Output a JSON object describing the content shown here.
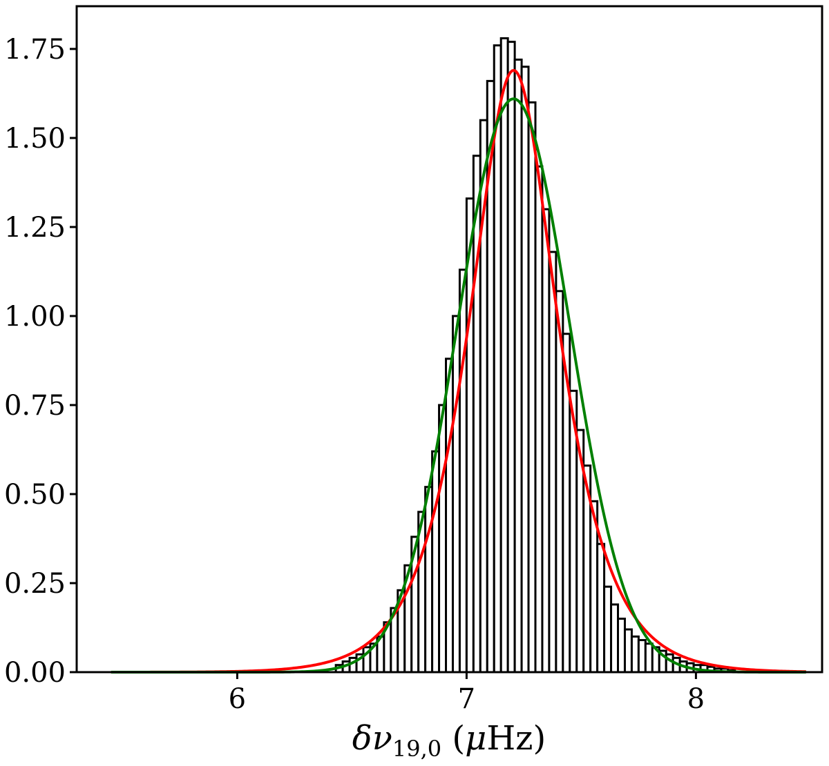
{
  "chart_data": {
    "type": "bar",
    "xlabel": {
      "symbol": "δν",
      "subscript": "19,0",
      "unit_open": " (",
      "unit_symbol": "μ",
      "unit_rest": "Hz)"
    },
    "ylabel": "",
    "xlim": [
      5.3,
      8.55
    ],
    "ylim": [
      0,
      1.87
    ],
    "x_ticks": [
      6,
      7,
      8
    ],
    "x_tick_labels": [
      "6",
      "7",
      "8"
    ],
    "y_ticks": [
      0,
      0.25,
      0.5,
      0.75,
      1.0,
      1.25,
      1.5,
      1.75
    ],
    "y_tick_labels": [
      "0.00",
      "0.25",
      "0.50",
      "0.75",
      "1.00",
      "1.25",
      "1.50",
      "1.75"
    ],
    "grid": false,
    "histogram": {
      "bin_edges": [
        6.43,
        6.46,
        6.49,
        6.52,
        6.55,
        6.58,
        6.61,
        6.64,
        6.67,
        6.7,
        6.73,
        6.76,
        6.79,
        6.82,
        6.85,
        6.88,
        6.91,
        6.94,
        6.97,
        7.0,
        7.03,
        7.06,
        7.09,
        7.12,
        7.15,
        7.18,
        7.21,
        7.24,
        7.27,
        7.3,
        7.33,
        7.36,
        7.39,
        7.42,
        7.45,
        7.48,
        7.51,
        7.54,
        7.57,
        7.6,
        7.63,
        7.66,
        7.69,
        7.72,
        7.75,
        7.78,
        7.81,
        7.84,
        7.87,
        7.9,
        7.93,
        7.96,
        7.99,
        8.02,
        8.05,
        8.08,
        8.11,
        8.14,
        8.17
      ],
      "values": [
        0.02,
        0.03,
        0.04,
        0.05,
        0.07,
        0.08,
        0.1,
        0.14,
        0.18,
        0.23,
        0.3,
        0.38,
        0.45,
        0.52,
        0.62,
        0.75,
        0.88,
        1.0,
        1.13,
        1.33,
        1.45,
        1.55,
        1.66,
        1.76,
        1.78,
        1.77,
        1.72,
        1.7,
        1.6,
        1.42,
        1.3,
        1.18,
        1.07,
        0.95,
        0.79,
        0.68,
        0.58,
        0.48,
        0.36,
        0.24,
        0.19,
        0.15,
        0.12,
        0.1,
        0.09,
        0.08,
        0.07,
        0.06,
        0.05,
        0.04,
        0.03,
        0.025,
        0.02,
        0.02,
        0.015,
        0.01,
        0.01,
        0.005
      ],
      "stroke_color": "#000000",
      "fill_color": "#ffffff"
    },
    "series": [
      {
        "model": "lorentzian",
        "center": 7.205,
        "peak": 1.69,
        "hwhm": 0.232,
        "x_range": [
          5.45,
          8.48
        ],
        "color": "#ff0000"
      },
      {
        "model": "gaussian",
        "center": 7.205,
        "peak": 1.61,
        "sigma": 0.245,
        "x_range": [
          5.45,
          8.48
        ],
        "color": "#008000"
      }
    ],
    "legend": "none"
  }
}
